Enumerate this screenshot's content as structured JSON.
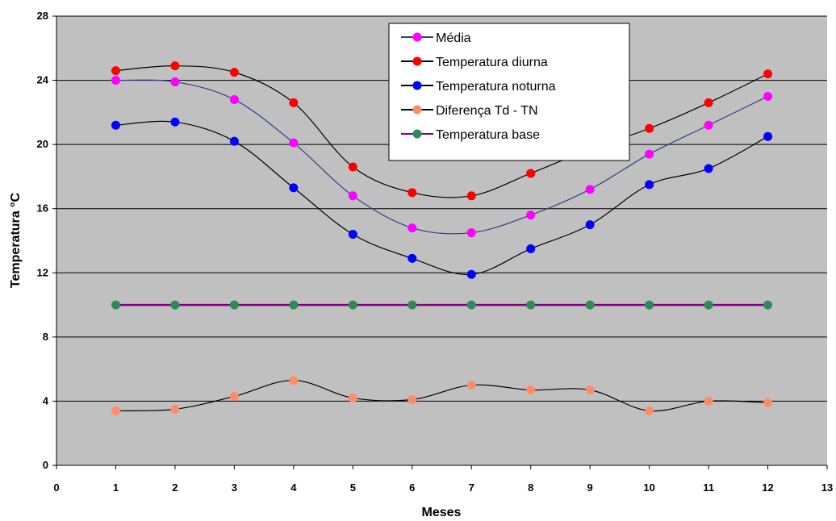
{
  "chart_data": {
    "type": "line",
    "xlabel": "Meses",
    "ylabel": "Temperatura °C",
    "xlim": [
      0,
      13
    ],
    "ylim": [
      0,
      28
    ],
    "x_ticks": [
      0,
      1,
      2,
      3,
      4,
      5,
      6,
      7,
      8,
      9,
      10,
      11,
      12,
      13
    ],
    "y_ticks": [
      0,
      4,
      8,
      12,
      16,
      20,
      24,
      28
    ],
    "grid": "horizontal",
    "legend_position": "top-center",
    "plot_background": "#c0c0c0",
    "x": [
      1,
      2,
      3,
      4,
      5,
      6,
      7,
      8,
      9,
      10,
      11,
      12
    ],
    "series": [
      {
        "name": "Média",
        "marker_color": "#ff00ff",
        "line_color": "#3a3a8a",
        "values": [
          24.0,
          23.9,
          22.8,
          20.1,
          16.8,
          14.8,
          14.5,
          15.6,
          17.2,
          19.4,
          21.2,
          23.0
        ]
      },
      {
        "name": "Temperatura diurna",
        "marker_color": "#ff0000",
        "line_color": "#000000",
        "values": [
          24.6,
          24.9,
          24.5,
          22.6,
          18.6,
          17.0,
          16.8,
          18.2,
          19.7,
          21.0,
          22.6,
          24.4
        ]
      },
      {
        "name": "Temperatura noturna",
        "marker_color": "#0000ff",
        "line_color": "#000000",
        "values": [
          21.2,
          21.4,
          20.2,
          17.3,
          14.4,
          12.9,
          11.9,
          13.5,
          15.0,
          17.5,
          18.5,
          20.5
        ]
      },
      {
        "name": "Diferença Td - TN",
        "marker_color": "#ff8c69",
        "line_color": "#000000",
        "values": [
          3.4,
          3.5,
          4.3,
          5.3,
          4.2,
          4.1,
          5.0,
          4.7,
          4.7,
          3.4,
          4.0,
          3.9
        ]
      },
      {
        "name": "Temperatura base",
        "marker_color": "#2e8b57",
        "line_color": "#800080",
        "values": [
          10,
          10,
          10,
          10,
          10,
          10,
          10,
          10,
          10,
          10,
          10,
          10
        ]
      }
    ]
  }
}
